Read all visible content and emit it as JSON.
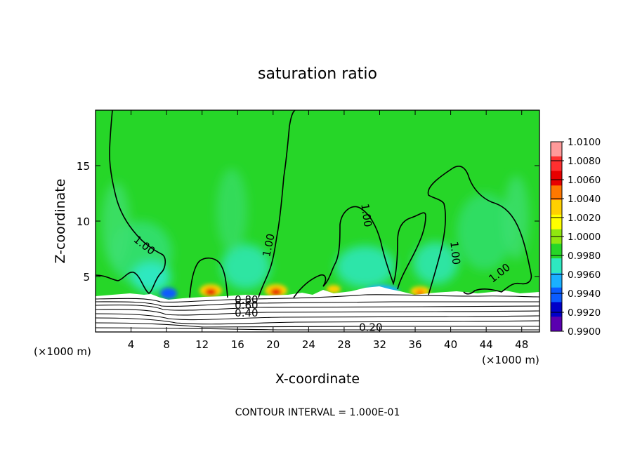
{
  "chart_data": {
    "type": "heatmap",
    "title": "saturation ratio",
    "xlabel": "X-coordinate",
    "ylabel": "Z-coordinate",
    "x_unit_left": "(×1000 m)",
    "x_unit_right": "(×1000 m)",
    "xlim": [
      0,
      50
    ],
    "ylim": [
      0,
      20
    ],
    "xticks": [
      4,
      8,
      12,
      16,
      20,
      24,
      28,
      32,
      36,
      40,
      44,
      48
    ],
    "yticks": [
      5,
      10,
      15
    ],
    "colorbar": {
      "values": [
        "1.0100",
        "1.0080",
        "1.0060",
        "1.0040",
        "1.0020",
        "1.0000",
        "0.9980",
        "0.9960",
        "0.9940",
        "0.9920",
        "0.9900"
      ],
      "colors": [
        "#ff9a9a",
        "#ff3030",
        "#e80000",
        "#ff7800",
        "#ffd000",
        "#ffff00",
        "#90e810",
        "#26d628",
        "#2ee8c0",
        "#1ab0ff",
        "#0a5cff",
        "#0000c8",
        "#5a00b0"
      ]
    },
    "contour_labels": [
      {
        "text": "1.00",
        "x": 5.5,
        "y": 7.5
      },
      {
        "text": "1.00",
        "x": 19.5,
        "y": 7.5
      },
      {
        "text": "1.00",
        "x": 30.5,
        "y": 10.2
      },
      {
        "text": "1.00",
        "x": 40.5,
        "y": 6.8
      },
      {
        "text": "1.00",
        "x": 45.5,
        "y": 5.0
      },
      {
        "text": "0.80",
        "x": 17.0,
        "y": 2.6
      },
      {
        "text": "0.60",
        "x": 17.0,
        "y": 2.1
      },
      {
        "text": "0.40",
        "x": 17.0,
        "y": 1.4
      },
      {
        "text": "0.20",
        "x": 31.0,
        "y": 0.1
      }
    ],
    "contour_interval_text": "CONTOUR INTERVAL = 1.000E-01",
    "background_color": "#26d628",
    "lower_region_color": "#ffffff"
  }
}
